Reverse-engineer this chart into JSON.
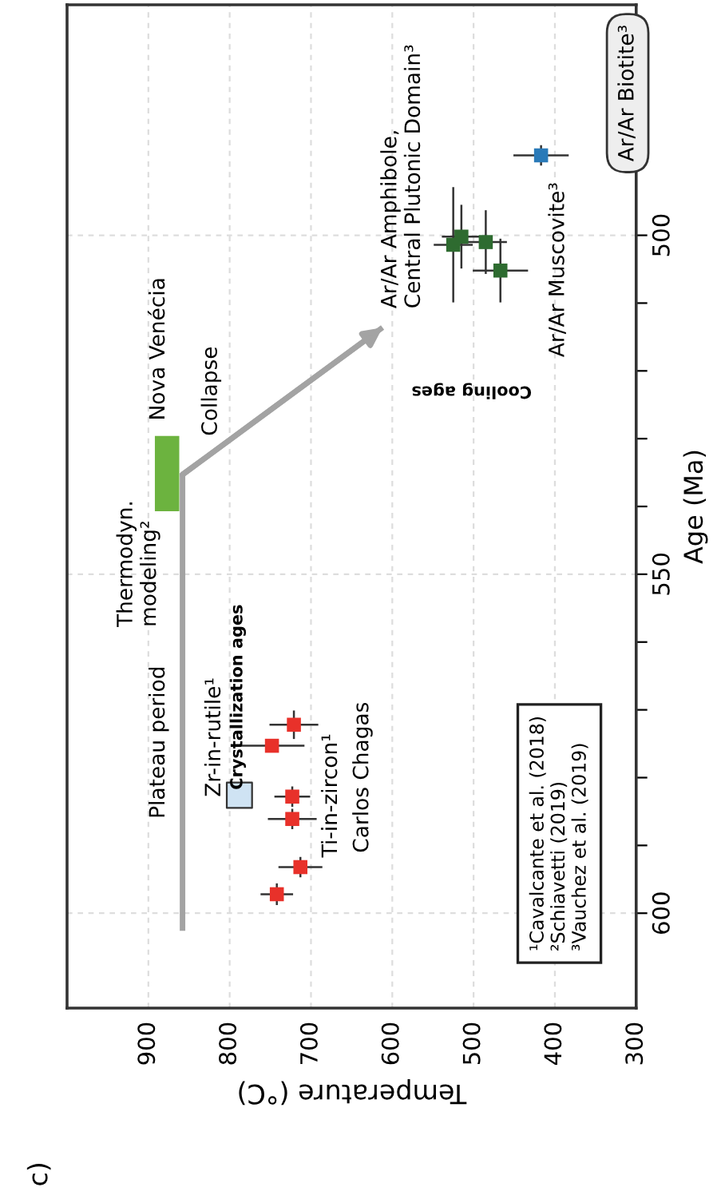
{
  "chart_data": {
    "type": "scatter",
    "xlabel": "Temperature (°C)",
    "ylabel": "Age (Ma)",
    "xlim": [
      1000,
      300
    ],
    "ylim": [
      614,
      466
    ],
    "xticks": [
      900,
      800,
      700,
      600,
      500,
      400,
      300
    ],
    "yticks": [
      {
        "value": 590,
        "label": null
      },
      {
        "value": 580,
        "label": null
      },
      {
        "value": 570,
        "label": null
      },
      {
        "value": 560,
        "label": null
      },
      600,
      550,
      500,
      {
        "value": 540,
        "label": null
      },
      {
        "value": 530,
        "label": null
      },
      {
        "value": 520,
        "label": null
      },
      {
        "value": 510,
        "label": null
      }
    ],
    "grid": true,
    "series": [
      {
        "type": "line",
        "color": "#a3a3a3",
        "x": [
          858,
          858,
          612
        ],
        "values": [
          602.6,
          535.3,
          513.6
        ]
      },
      {
        "type": "bar",
        "color": "#6cb33f",
        "x": [
          877
        ],
        "base": [
          529.6
        ],
        "values": [
          11.1
        ]
      },
      {
        "color": "#e8312a",
        "marker": "square",
        "x": [
          742,
          713,
          723,
          723,
          748,
          721
        ],
        "values": [
          597.2,
          593.2,
          586.1,
          582.8,
          575.3,
          572.2
        ],
        "xerrors": [
          20,
          27,
          30,
          22,
          40,
          30
        ],
        "errors": [
          1.6,
          1.5,
          1.5,
          1.5,
          null,
          2.1
        ]
      },
      {
        "color": "#cfe3f3",
        "marker": "square",
        "x": [
          788
        ],
        "values": [
          582.6
        ]
      },
      {
        "color": "#2e6b30",
        "marker": "square",
        "x": [
          525,
          515,
          485,
          467
        ],
        "values": [
          501.4,
          500.2,
          501.0,
          505.2
        ],
        "xerrors": [
          24,
          24,
          26,
          34
        ],
        "errors": [
          8.5,
          4.7,
          4.7,
          4.7
        ]
      },
      {
        "color": "#2a7ab8",
        "marker": "square",
        "x": [
          417
        ],
        "values": [
          488.2
        ],
        "xerrors": [
          34
        ],
        "errors": [
          1.5
        ]
      }
    ],
    "annotations": [
      "Plateau period",
      "Thermodyn.\nmodeling²",
      "Nova Venécia",
      "Collapse",
      "Crystallization ages",
      "Zr-in-rutile¹",
      "Ti-in-zircon¹",
      "Carlos Chagas",
      "Ar/Ar Amphibole,\nCentral Plutonic Domain³",
      "Cooling ages",
      "Ar/Ar Muscovite³",
      "Ar/Ar Biotite³",
      "¹Cavalcante et al. (2018)\n²Schiavetti (2019)\n³Vauchez et al. (2019)",
      "c)"
    ]
  }
}
